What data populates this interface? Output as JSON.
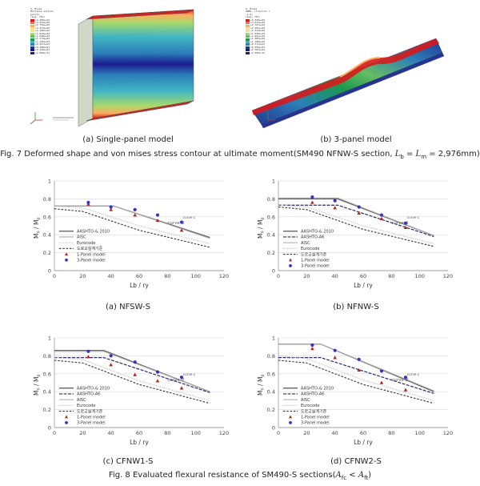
{
  "figure7": {
    "caption_prefix": "Fig. 7 Deformed shape and von mises stress contour at ultimate moment(SM490 NFNW-S section, ",
    "caption_math": "L",
    "caption_sub1": "b",
    "caption_eq": " = ",
    "caption_math2": "L",
    "caption_sub2": "m",
    "caption_suffix": " = 2,976mm)",
    "panels": [
      {
        "label": "(a) Single-panel model",
        "legend_title": "S, Mises",
        "legend_sub": "Multiple section points",
        "legend_avg": "(Avg: 75%)"
      },
      {
        "label": "(b) 3-panel model",
        "legend_title": "S, Mises",
        "legend_sub": "SNEG, (fraction = -1.0)",
        "legend_avg": "(Avg: 75%)"
      }
    ],
    "contour_colors": [
      "#d7191c",
      "#f46d43",
      "#fdae61",
      "#fee08b",
      "#d9ef8b",
      "#a6d96a",
      "#66bd63",
      "#1a9850",
      "#41b6c4",
      "#2c7fb8",
      "#253494",
      "#1b1b8f"
    ],
    "legend_values_a": [
      "+3.300e+02",
      "+3.024e+02",
      "+2.749e+02",
      "+2.474e+02",
      "+2.199e+02",
      "+1.924e+02",
      "+1.649e+02",
      "+1.374e+02",
      "+1.100e+02",
      "+8.247e+01",
      "+5.498e+01",
      "+2.749e+01",
      "+1.069e-01"
    ],
    "legend_values_b": [
      "+3.320e+02",
      "+3.044e+02",
      "+2.767e+02",
      "+2.491e+02",
      "+2.214e+02",
      "+1.938e+02",
      "+1.661e+02",
      "+1.385e+02",
      "+1.108e+02",
      "+8.317e+01",
      "+5.552e+01",
      "+2.787e+01",
      "+2.205e-01"
    ]
  },
  "figure8": {
    "caption_prefix": "Fig. 8 Evaluated flexural resistance of SM490-S sections(",
    "caption_math_a": "A",
    "caption_sub_a": "fc",
    "caption_lt": " < ",
    "caption_math_b": "A",
    "caption_sub_b": "ft",
    "caption_suffix": ")",
    "xlabel": "Lb / ry",
    "ylabel_main": "M",
    "ylabel_sub1": "n",
    "ylabel_slash": " / M",
    "ylabel_sub2": "p",
    "curve_label": "curve d",
    "curve_label_b": "curve c",
    "legend": {
      "aashto2010": "AASHTO-& 2010",
      "aashto_a6": "AASHTO-A6",
      "aisc": "AISC",
      "eurocode": "Eurocode",
      "korean": "도로교설계기준",
      "one_panel": "1-Panel model",
      "three_panel": "3-Panel model"
    },
    "colors": {
      "aashto2010": "#555555",
      "aashto_a6": "#2b2b6b",
      "aisc": "#aaaaaa",
      "eurocode": "#bbbbbb",
      "korean": "#333333",
      "one_panel": "#b22222",
      "three_panel": "#3333cc",
      "grid": "#d9d9d9"
    }
  },
  "chart_data": [
    {
      "type": "line",
      "subtitle": "(a) NFSW-S",
      "xlabel": "Lb / ry",
      "ylabel": "Mn / Mp",
      "xlim": [
        0,
        120
      ],
      "ylim": [
        0,
        1
      ],
      "xticks": [
        0,
        20,
        40,
        60,
        80,
        100,
        120
      ],
      "yticks": [
        0,
        0.2,
        0.4,
        0.6,
        0.8,
        1
      ],
      "grid": true,
      "legend_position": "bottom-left",
      "series": [
        {
          "name": "AASHTO-& 2010",
          "x": [
            0,
            42,
            110
          ],
          "y": [
            0.72,
            0.72,
            0.37
          ]
        },
        {
          "name": "AISC",
          "x": [
            0,
            42,
            110
          ],
          "y": [
            0.72,
            0.72,
            0.36
          ]
        },
        {
          "name": "Eurocode",
          "x": [
            0,
            20,
            60,
            110
          ],
          "y": [
            0.72,
            0.7,
            0.5,
            0.3
          ]
        },
        {
          "name": "도로교설계기준",
          "x": [
            0,
            20,
            60,
            110
          ],
          "y": [
            0.69,
            0.66,
            0.45,
            0.26
          ]
        },
        {
          "name": "1-Panel model",
          "x": [
            24,
            40,
            57,
            73,
            90
          ],
          "y": [
            0.74,
            0.68,
            0.62,
            0.56,
            0.45
          ]
        },
        {
          "name": "3-Panel model",
          "x": [
            24,
            40,
            57,
            73,
            90
          ],
          "y": [
            0.76,
            0.71,
            0.68,
            0.62,
            0.54
          ]
        }
      ]
    },
    {
      "type": "line",
      "subtitle": "(b) NFNW-S",
      "xlabel": "Lb / ry",
      "ylabel": "Mn / Mp",
      "xlim": [
        0,
        120
      ],
      "ylim": [
        0,
        1
      ],
      "xticks": [
        0,
        20,
        40,
        60,
        80,
        100,
        120
      ],
      "yticks": [
        0,
        0.2,
        0.4,
        0.6,
        0.8,
        1
      ],
      "grid": true,
      "legend_position": "bottom-left",
      "series": [
        {
          "name": "AASHTO-& 2010",
          "x": [
            0,
            42,
            110
          ],
          "y": [
            0.8,
            0.8,
            0.39
          ]
        },
        {
          "name": "AASHTO-A6",
          "x": [
            0,
            42,
            110
          ],
          "y": [
            0.73,
            0.73,
            0.38
          ]
        },
        {
          "name": "AISC",
          "x": [
            0,
            42,
            110
          ],
          "y": [
            0.81,
            0.81,
            0.39
          ]
        },
        {
          "name": "Eurocode",
          "x": [
            0,
            20,
            60,
            110
          ],
          "y": [
            0.73,
            0.71,
            0.5,
            0.3
          ]
        },
        {
          "name": "도로교설계기준",
          "x": [
            0,
            20,
            60,
            110
          ],
          "y": [
            0.71,
            0.68,
            0.46,
            0.27
          ]
        },
        {
          "name": "1-Panel model",
          "x": [
            24,
            40,
            57,
            73,
            90
          ],
          "y": [
            0.76,
            0.7,
            0.64,
            0.58,
            0.48
          ]
        },
        {
          "name": "3-Panel model",
          "x": [
            24,
            40,
            57,
            73,
            90
          ],
          "y": [
            0.82,
            0.78,
            0.71,
            0.62,
            0.53
          ]
        }
      ]
    },
    {
      "type": "line",
      "subtitle": "(c) CFNW1-S",
      "xlabel": "Lb / ry",
      "ylabel": "Mn / Mp",
      "xlim": [
        0,
        120
      ],
      "ylim": [
        0,
        1
      ],
      "xticks": [
        0,
        20,
        40,
        60,
        80,
        100,
        120
      ],
      "yticks": [
        0,
        0.2,
        0.4,
        0.6,
        0.8,
        1
      ],
      "grid": true,
      "legend_position": "bottom-left",
      "series": [
        {
          "name": "AASHTO-& 2010",
          "x": [
            0,
            35,
            110
          ],
          "y": [
            0.86,
            0.86,
            0.4
          ]
        },
        {
          "name": "AASHTO-A6",
          "x": [
            0,
            35,
            110
          ],
          "y": [
            0.78,
            0.78,
            0.39
          ]
        },
        {
          "name": "AISC",
          "x": [
            0,
            35,
            110
          ],
          "y": [
            0.85,
            0.85,
            0.4
          ]
        },
        {
          "name": "Eurocode",
          "x": [
            0,
            20,
            60,
            110
          ],
          "y": [
            0.78,
            0.76,
            0.52,
            0.3
          ]
        },
        {
          "name": "도로교설계기준",
          "x": [
            0,
            20,
            60,
            110
          ],
          "y": [
            0.75,
            0.72,
            0.48,
            0.27
          ]
        },
        {
          "name": "1-Panel model",
          "x": [
            24,
            40,
            57,
            73,
            90
          ],
          "y": [
            0.79,
            0.7,
            0.59,
            0.52,
            0.44
          ]
        },
        {
          "name": "3-Panel model",
          "x": [
            24,
            40,
            57,
            73,
            90
          ],
          "y": [
            0.85,
            0.8,
            0.73,
            0.62,
            0.56
          ]
        }
      ]
    },
    {
      "type": "line",
      "subtitle": "(d) CFNW2-S",
      "xlabel": "Lb / ry",
      "ylabel": "Mn / Mp",
      "xlim": [
        0,
        120
      ],
      "ylim": [
        0,
        1
      ],
      "xticks": [
        0,
        20,
        40,
        60,
        80,
        100,
        120
      ],
      "yticks": [
        0,
        0.2,
        0.4,
        0.6,
        0.8,
        1
      ],
      "grid": true,
      "legend_position": "bottom-left",
      "series": [
        {
          "name": "AASHTO-& 2010",
          "x": [
            0,
            30,
            110
          ],
          "y": [
            0.93,
            0.93,
            0.4
          ]
        },
        {
          "name": "AASHTO-A6",
          "x": [
            0,
            30,
            110
          ],
          "y": [
            0.78,
            0.78,
            0.38
          ]
        },
        {
          "name": "AISC",
          "x": [
            0,
            30,
            110
          ],
          "y": [
            0.93,
            0.93,
            0.41
          ]
        },
        {
          "name": "Eurocode",
          "x": [
            0,
            20,
            60,
            110
          ],
          "y": [
            0.8,
            0.77,
            0.53,
            0.3
          ]
        },
        {
          "name": "도로교설계기준",
          "x": [
            0,
            20,
            60,
            110
          ],
          "y": [
            0.75,
            0.72,
            0.48,
            0.27
          ]
        },
        {
          "name": "1-Panel model",
          "x": [
            24,
            40,
            57,
            73,
            90
          ],
          "y": [
            0.88,
            0.78,
            0.64,
            0.5,
            0.42
          ]
        },
        {
          "name": "3-Panel model",
          "x": [
            24,
            40,
            57,
            73,
            90
          ],
          "y": [
            0.92,
            0.86,
            0.76,
            0.63,
            0.56
          ]
        }
      ]
    }
  ]
}
